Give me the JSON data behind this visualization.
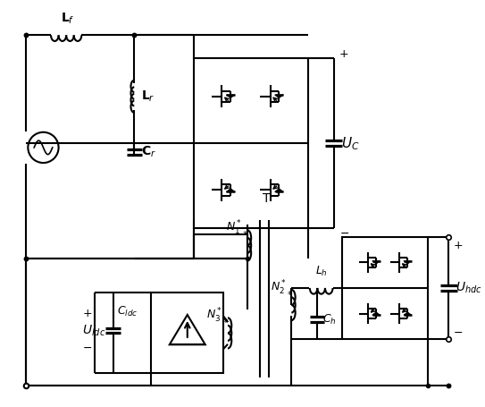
{
  "bg_color": "#ffffff",
  "line_color": "#000000",
  "lw": 1.5,
  "fig_width": 5.43,
  "fig_height": 4.55
}
